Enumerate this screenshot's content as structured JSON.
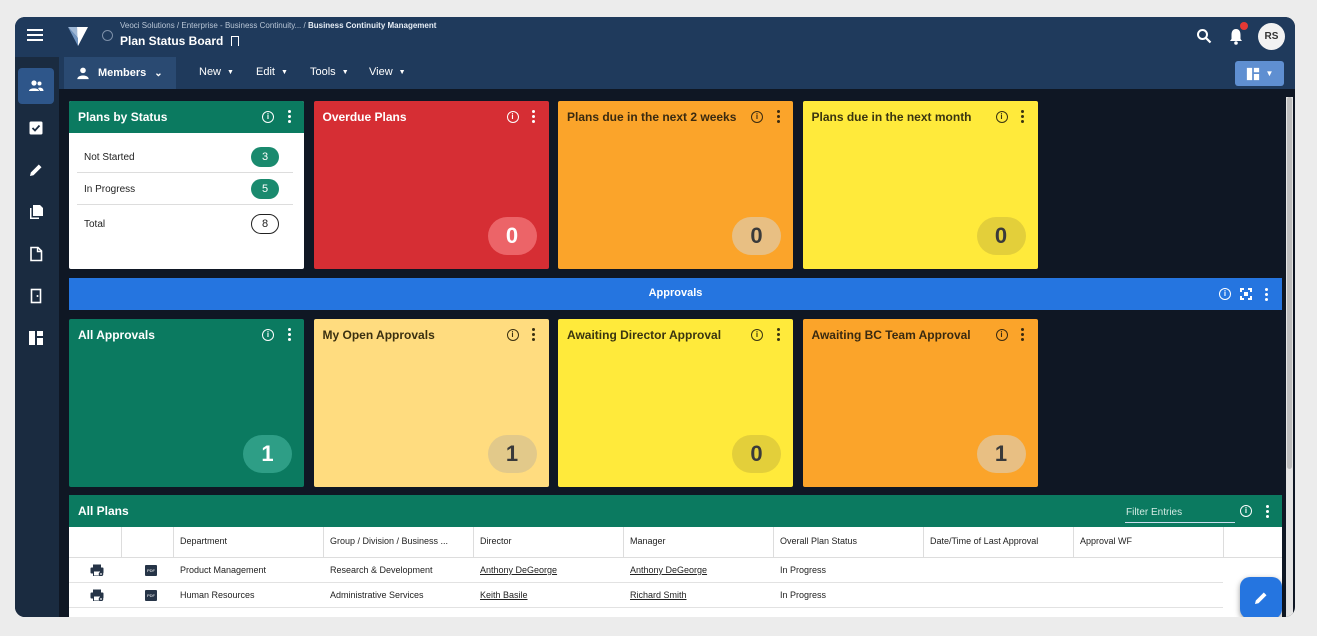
{
  "header": {
    "breadcrumb": [
      "Veoci Solutions",
      "Enterprise - Business Continuity...",
      "Business Continuity Management"
    ],
    "title": "Plan Status Board",
    "avatar_initials": "RS"
  },
  "toolbar": {
    "members_label": "Members",
    "menus": [
      "New",
      "Edit",
      "Tools",
      "View"
    ]
  },
  "sidebar": {
    "items": [
      "users-icon",
      "checkbox-icon",
      "pencil-icon",
      "documents-icon",
      "form-icon",
      "door-icon",
      "dashboard-icon"
    ]
  },
  "tiles_top": [
    {
      "title": "Plans by Status",
      "color": "#0b7a60",
      "text_color": "#ffffff"
    },
    {
      "title": "Overdue Plans",
      "count": "0",
      "color": "#d62e34",
      "text_color": "#ffffff",
      "badge_color": "#ec6468"
    },
    {
      "title": "Plans due in the next 2 weeks",
      "count": "0",
      "color": "#fba42a",
      "text_color": "#3a2a10",
      "badge_color": "#e8bf83"
    },
    {
      "title": "Plans due in the next month",
      "count": "0",
      "color": "#ffea3b",
      "text_color": "#3a3510",
      "badge_color": "#e3cf3a"
    }
  ],
  "plans_by_status": [
    {
      "label": "Not Started",
      "count": "3"
    },
    {
      "label": "In Progress",
      "count": "5"
    },
    {
      "label": "Total",
      "count": "8"
    }
  ],
  "approvals_bar": {
    "title": "Approvals"
  },
  "tiles_approvals": [
    {
      "title": "All Approvals",
      "count": "1",
      "color": "#0b7a60",
      "text_color": "#ffffff",
      "badge_color": "#2e9e86"
    },
    {
      "title": "My Open Approvals",
      "count": "1",
      "color": "#ffdc7f",
      "text_color": "#3a3010",
      "badge_color": "#e2c98a"
    },
    {
      "title": "Awaiting Director Approval",
      "count": "0",
      "color": "#ffea3b",
      "text_color": "#3a3510",
      "badge_color": "#e3cf3a"
    },
    {
      "title": "Awaiting BC Team Approval",
      "count": "1",
      "color": "#fba42a",
      "text_color": "#3a2a10",
      "badge_color": "#e8bf83"
    }
  ],
  "all_plans": {
    "title": "All Plans",
    "filter_placeholder": "Filter Entries",
    "columns": [
      "Department",
      "Group / Division / Business ...",
      "Director",
      "Manager",
      "Overall Plan Status",
      "Date/Time of Last Approval",
      "Approval WF"
    ],
    "rows": [
      {
        "department": "Product Management",
        "group": "Research & Development",
        "director": "Anthony DeGeorge",
        "manager": "Anthony DeGeorge",
        "status": "In Progress"
      },
      {
        "department": "Human Resources",
        "group": "Administrative Services",
        "director": "Keith Basile",
        "manager": "Richard Smith",
        "status": "In Progress"
      }
    ],
    "pdf_label": "PDF"
  }
}
